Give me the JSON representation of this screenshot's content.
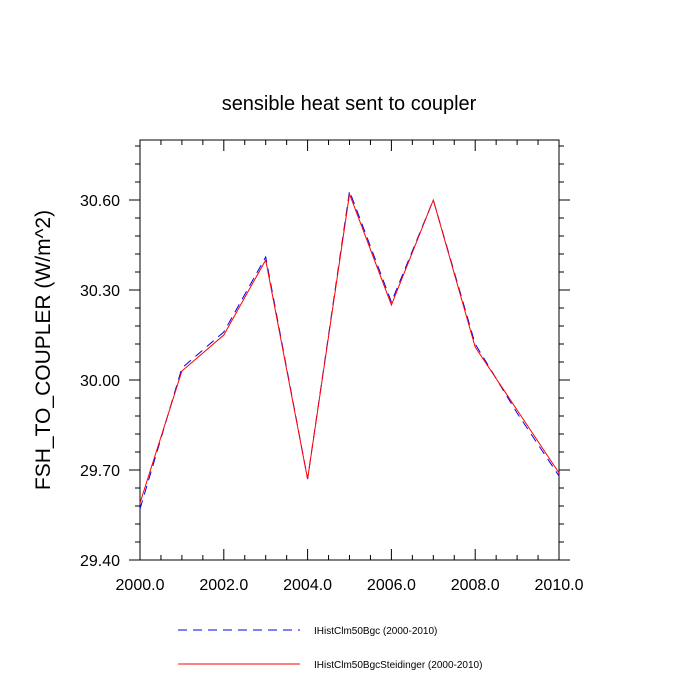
{
  "chart_data": {
    "type": "line",
    "title": "sensible heat sent to coupler",
    "xlabel": "",
    "ylabel": "FSH_TO_COUPLER  (W/m^2)",
    "xlim": [
      2000,
      2010
    ],
    "ylim": [
      29.4,
      30.8
    ],
    "xticks": [
      2000,
      2002,
      2004,
      2006,
      2008,
      2010
    ],
    "xtick_labels": [
      "2000.0",
      "2002.0",
      "2004.0",
      "2006.0",
      "2008.0",
      "2010.0"
    ],
    "yticks": [
      29.4,
      29.7,
      30.0,
      30.3,
      30.6
    ],
    "ytick_labels": [
      "29.40",
      "29.70",
      "30.00",
      "30.30",
      "30.60"
    ],
    "grid": false,
    "legend_position": "bottom",
    "x": [
      2000,
      2001,
      2002,
      2003,
      2004,
      2005,
      2006,
      2007,
      2008,
      2009,
      2010
    ],
    "series": [
      {
        "name": "IHistClm50Bgc (2000-2010)",
        "color": "#0000ff",
        "style": "dashed",
        "values": [
          29.57,
          30.04,
          30.16,
          30.41,
          29.67,
          30.63,
          30.26,
          30.6,
          30.12,
          29.89,
          29.68
        ]
      },
      {
        "name": "IHistClm50BgcSteidinger (2000-2010)",
        "color": "#ff0000",
        "style": "solid",
        "values": [
          29.59,
          30.03,
          30.15,
          30.4,
          29.67,
          30.62,
          30.25,
          30.6,
          30.11,
          29.9,
          29.69
        ]
      }
    ]
  }
}
